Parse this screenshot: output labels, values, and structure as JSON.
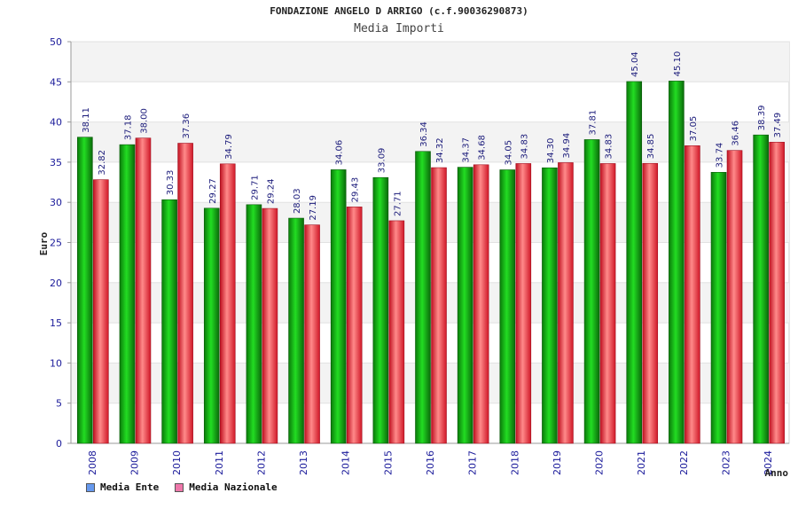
{
  "chart_data": {
    "type": "bar",
    "title": "FONDAZIONE ANGELO D ARRIGO (c.f.90036290873)",
    "subtitle": "Media Importi",
    "xlabel": "Anno",
    "ylabel": "Euro",
    "ylim": [
      0,
      50
    ],
    "yticks": [
      0,
      5,
      10,
      15,
      20,
      25,
      30,
      35,
      40,
      45,
      50
    ],
    "grid": true,
    "legend_position": "bottom-left",
    "categories": [
      "2008",
      "2009",
      "2010",
      "2011",
      "2012",
      "2013",
      "2014",
      "2015",
      "2016",
      "2017",
      "2018",
      "2019",
      "2020",
      "2021",
      "2022",
      "2023",
      "2024"
    ],
    "series": [
      {
        "name": "Media Ente",
        "color": "#1aaa1a",
        "legend_color": "#6699ee",
        "values": [
          38.11,
          37.18,
          30.33,
          29.27,
          29.71,
          28.03,
          34.06,
          33.09,
          36.34,
          34.37,
          34.05,
          34.3,
          37.81,
          45.04,
          45.1,
          33.74,
          38.39
        ],
        "labels": [
          "38.11",
          "37.18",
          "30.33",
          "29.27",
          "29.71",
          "28.03",
          "34.06",
          "33.09",
          "36.34",
          "34.37",
          "34.05",
          "34.30",
          "37.81",
          "45.04",
          "45.10",
          "33.74",
          "38.39"
        ]
      },
      {
        "name": "Media Nazionale",
        "color": "#e0303a",
        "legend_color": "#ee77aa",
        "values": [
          32.82,
          38.0,
          37.36,
          34.79,
          29.24,
          27.19,
          29.43,
          27.71,
          34.32,
          34.68,
          34.83,
          34.94,
          34.83,
          34.85,
          37.05,
          36.46,
          37.49
        ],
        "labels": [
          "32.82",
          "38.00",
          "37.36",
          "34.79",
          "29.24",
          "27.19",
          "29.43",
          "27.71",
          "34.32",
          "34.68",
          "34.83",
          "34.94",
          "34.83",
          "34.85",
          "37.05",
          "36.46",
          "37.49"
        ]
      }
    ]
  }
}
